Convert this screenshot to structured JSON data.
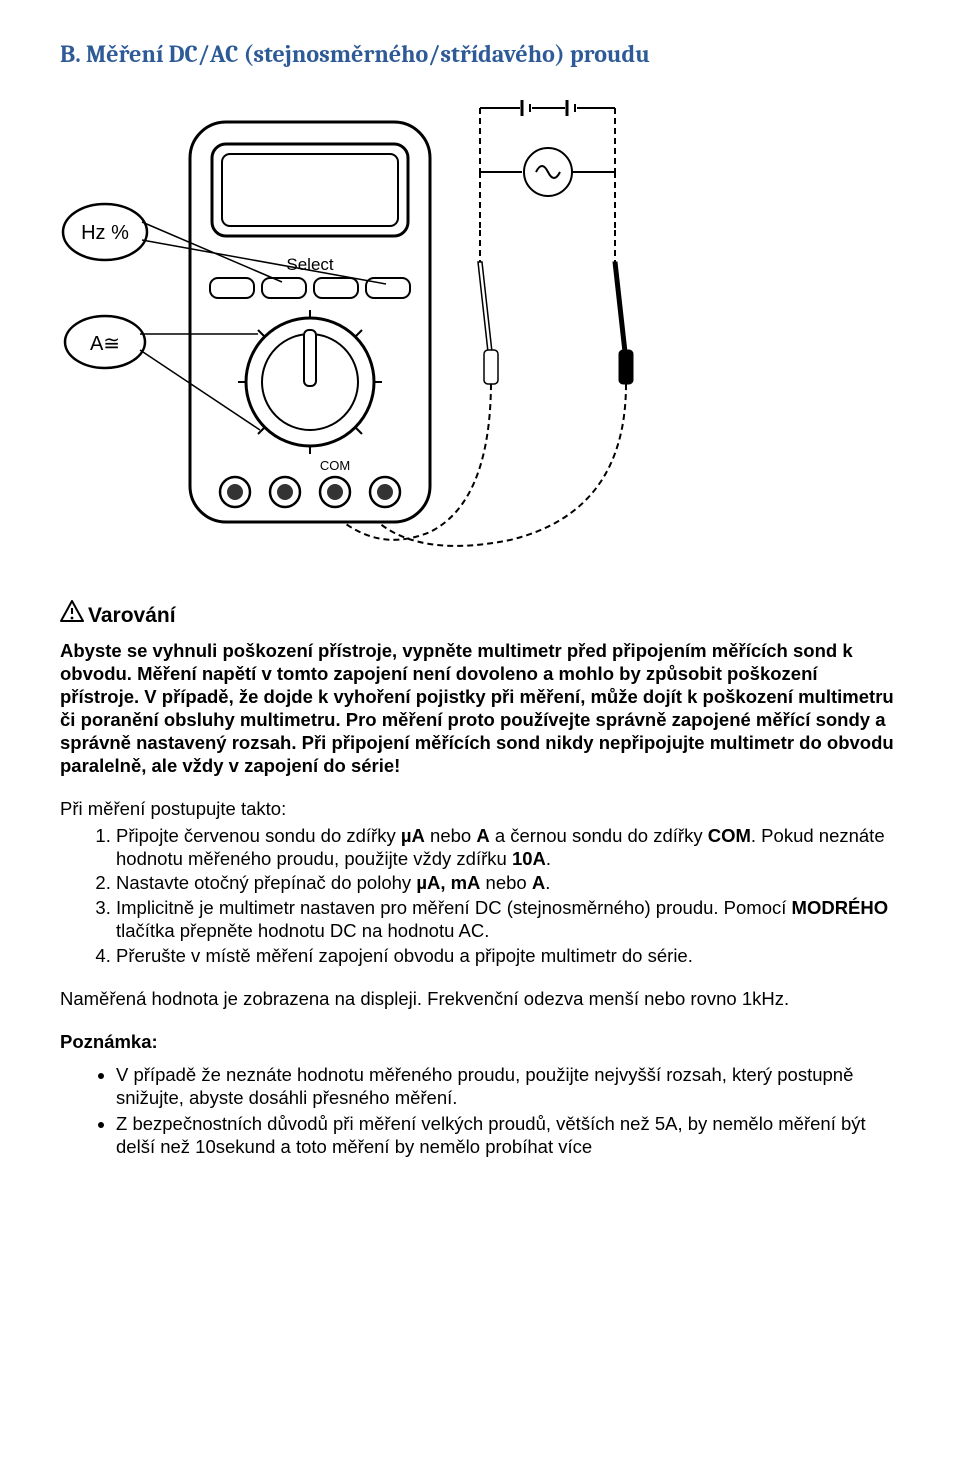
{
  "title": "B. Měření DC/AC (stejnosměrného/střídavého) proudu",
  "diagram": {
    "callout_hz": "Hz %",
    "callout_a": "A≅",
    "button_select": "Select",
    "label_com": "COM"
  },
  "warning_label": "Varování",
  "warning_body": "Abyste se vyhnuli poškození přístroje, vypněte multimetr před připojením měřících sond k obvodu. Měření napětí v tomto zapojení není dovoleno a mohlo by způsobit poškození přístroje. V případě, že dojde k vyhoření pojistky při měření, může dojít k poškození multimetru či poranění obsluhy multimetru. Pro měření proto používejte správně zapojené měřící sondy a správně nastavený rozsah. Při připojení měřících sond nikdy nepřipojujte multimetr do obvodu paralelně, ale vždy v zapojení do série!",
  "steps_intro": "Při měření postupujte takto:",
  "steps": [
    "Připojte červenou sondu do zdířky <b>µA</b> nebo <b>A</b> a černou sondu do zdířky <b>COM</b>. Pokud neznáte hodnotu měřeného proudu, použijte vždy zdířku <b>10A</b>.",
    "Nastavte otočný přepínač do polohy <b>µA, mA</b> nebo <b>A</b>.",
    "Implicitně je multimetr nastaven pro měření DC (stejnosměrného) proudu. Pomocí <b>MODRÉHO</b> tlačítka přepněte hodnotu DC na hodnotu AC.",
    "Přerušte v místě měření zapojení obvodu a připojte multimetr do série."
  ],
  "result_para": "Naměřená hodnota je zobrazena na displeji. Frekvenční odezva menší nebo rovno 1kHz.",
  "note_label": "Poznámka:",
  "notes": [
    "V případě že neznáte hodnotu měřeného proudu, použijte nejvyšší rozsah, který postupně snižujte, abyste dosáhli přesného měření.",
    "Z bezpečnostních důvodů při měření velkých proudů, větších než 5A, by nemělo měření být delší než 10sekund a toto měření by nemělo probíhat více"
  ],
  "colors": {
    "title": "#2e5b97",
    "text": "#000000",
    "background": "#ffffff",
    "diagram_stroke": "#000000",
    "diagram_fill_dark": "#333333"
  }
}
